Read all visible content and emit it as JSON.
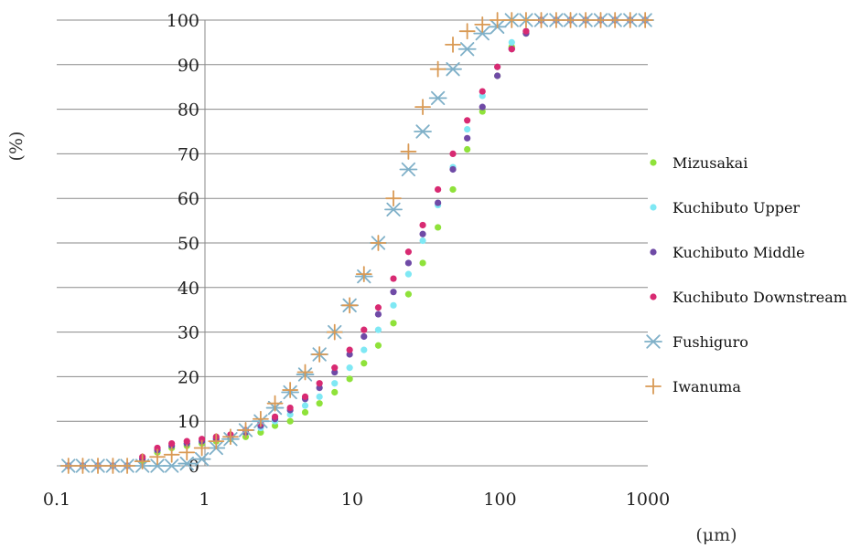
{
  "chart_data": {
    "type": "scatter",
    "title": "",
    "xlabel": "(μm)",
    "ylabel": "(%)",
    "xscale": "log",
    "xlim": [
      0.1,
      1000
    ],
    "ylim": [
      0,
      100
    ],
    "x_ticks": [
      "0.1",
      "1",
      "10",
      "100",
      "1000"
    ],
    "y_ticks": [
      "0",
      "10",
      "20",
      "30",
      "40",
      "50",
      "60",
      "70",
      "80",
      "90",
      "100"
    ],
    "grid": "horizontal",
    "legend_position": "right",
    "series": [
      {
        "name": "Mizusakai",
        "marker": "dot",
        "color": "#8fe23a",
        "x": [
          0.12,
          0.15,
          0.19,
          0.24,
          0.3,
          0.38,
          0.48,
          0.6,
          0.76,
          0.96,
          1.2,
          1.5,
          1.9,
          2.4,
          3.0,
          3.8,
          4.8,
          6.0,
          7.6,
          9.6,
          12,
          15,
          19,
          24,
          30,
          38,
          48,
          60,
          76,
          96,
          120,
          150,
          190,
          240,
          300,
          380,
          480,
          600,
          760,
          960
        ],
        "y": [
          0,
          0,
          0,
          0,
          0,
          1,
          3,
          4,
          4.5,
          5,
          5.5,
          6,
          6.5,
          7.5,
          9,
          10,
          12,
          14,
          16.5,
          19.5,
          23,
          27,
          32,
          38.5,
          45.5,
          53.5,
          62,
          71,
          79.5,
          87.5,
          94,
          97,
          100,
          100,
          100,
          100,
          100,
          100,
          100,
          100
        ]
      },
      {
        "name": "Kuchibuto Upper",
        "marker": "dot",
        "color": "#7fe8f4",
        "x": [
          0.12,
          0.15,
          0.19,
          0.24,
          0.3,
          0.38,
          0.48,
          0.6,
          0.76,
          0.96,
          1.2,
          1.5,
          1.9,
          2.4,
          3.0,
          3.8,
          4.8,
          6.0,
          7.6,
          9.6,
          12,
          15,
          19,
          24,
          30,
          38,
          48,
          60,
          76,
          96,
          120,
          150,
          190,
          240,
          300,
          380,
          480,
          600,
          760,
          960
        ],
        "y": [
          0,
          0,
          0,
          0,
          0,
          1.5,
          3.5,
          4.5,
          5,
          5.5,
          6,
          6.5,
          7.5,
          8.5,
          10,
          11.5,
          13.5,
          15.5,
          18.5,
          22,
          26,
          30.5,
          36,
          43,
          50.5,
          58.5,
          67,
          75.5,
          83,
          89.5,
          95,
          97.5,
          100,
          100,
          100,
          100,
          100,
          100,
          100,
          100
        ]
      },
      {
        "name": "Kuchibuto Middle",
        "marker": "dot",
        "color": "#6f4aa6",
        "x": [
          0.12,
          0.15,
          0.19,
          0.24,
          0.3,
          0.38,
          0.48,
          0.6,
          0.76,
          0.96,
          1.2,
          1.5,
          1.9,
          2.4,
          3.0,
          3.8,
          4.8,
          6.0,
          7.6,
          9.6,
          12,
          15,
          19,
          24,
          30,
          38,
          48,
          60,
          76,
          96,
          120,
          150,
          190,
          240,
          300,
          380,
          480,
          600,
          760,
          960
        ],
        "y": [
          0,
          0,
          0,
          0,
          0,
          1.5,
          3.5,
          4.5,
          5,
          5.5,
          6,
          6.5,
          7.5,
          9,
          10.5,
          12.5,
          15,
          17.5,
          21,
          25,
          29,
          34,
          39,
          45.5,
          52,
          59,
          66.5,
          73.5,
          80.5,
          87.5,
          93.5,
          97,
          100,
          100,
          100,
          100,
          100,
          100,
          100,
          100
        ]
      },
      {
        "name": "Kuchibuto Downstream",
        "marker": "dot",
        "color": "#d82a72",
        "x": [
          0.12,
          0.15,
          0.19,
          0.24,
          0.3,
          0.38,
          0.48,
          0.6,
          0.76,
          0.96,
          1.2,
          1.5,
          1.9,
          2.4,
          3.0,
          3.8,
          4.8,
          6.0,
          7.6,
          9.6,
          12,
          15,
          19,
          24,
          30,
          38,
          48,
          60,
          76,
          96,
          120,
          150,
          190,
          240,
          300,
          380,
          480,
          600,
          760,
          960
        ],
        "y": [
          0,
          0,
          0,
          0,
          0,
          2,
          4,
          5,
          5.5,
          6,
          6.5,
          7,
          8,
          9.5,
          11,
          13,
          15.5,
          18.5,
          22,
          26,
          30.5,
          35.5,
          42,
          48,
          54,
          62,
          70,
          77.5,
          84,
          89.5,
          93.5,
          97.5,
          100,
          100,
          100,
          100,
          100,
          100,
          100,
          100
        ]
      },
      {
        "name": "Fushiguro",
        "marker": "asterisk",
        "color": "#7fb0c8",
        "x": [
          0.12,
          0.15,
          0.19,
          0.24,
          0.3,
          0.38,
          0.48,
          0.6,
          0.76,
          0.96,
          1.2,
          1.5,
          1.9,
          2.4,
          3.0,
          3.8,
          4.8,
          6.0,
          7.6,
          9.6,
          12,
          15,
          19,
          24,
          30,
          38,
          48,
          60,
          76,
          96,
          120,
          150,
          190,
          240,
          300,
          380,
          480,
          600,
          760,
          960
        ],
        "y": [
          0,
          0,
          0,
          0,
          0,
          0,
          0,
          0,
          0.5,
          1.5,
          4,
          6,
          8,
          10,
          13,
          16.5,
          20.5,
          25,
          30,
          36,
          42.5,
          50,
          57.5,
          66.5,
          75,
          82.5,
          89,
          93.5,
          97,
          98.5,
          100,
          100,
          100,
          100,
          100,
          100,
          100,
          100,
          100,
          100
        ]
      },
      {
        "name": "Iwanuma",
        "marker": "plus",
        "color": "#d99a55",
        "x": [
          0.12,
          0.15,
          0.19,
          0.24,
          0.3,
          0.38,
          0.48,
          0.6,
          0.76,
          0.96,
          1.2,
          1.5,
          1.9,
          2.4,
          3.0,
          3.8,
          4.8,
          6.0,
          7.6,
          9.6,
          12,
          15,
          19,
          24,
          30,
          38,
          48,
          60,
          76,
          96,
          120,
          150,
          190,
          240,
          300,
          380,
          480,
          600,
          760,
          960
        ],
        "y": [
          0,
          0,
          0,
          0,
          0,
          1,
          2,
          2.5,
          3,
          4,
          5.5,
          6.5,
          8,
          10.5,
          14,
          17,
          21,
          25,
          30,
          36,
          43,
          50,
          60,
          70.5,
          80.5,
          89,
          94.5,
          97.5,
          99,
          100,
          100,
          100,
          100,
          100,
          100,
          100,
          100,
          100,
          100,
          100
        ]
      }
    ]
  }
}
